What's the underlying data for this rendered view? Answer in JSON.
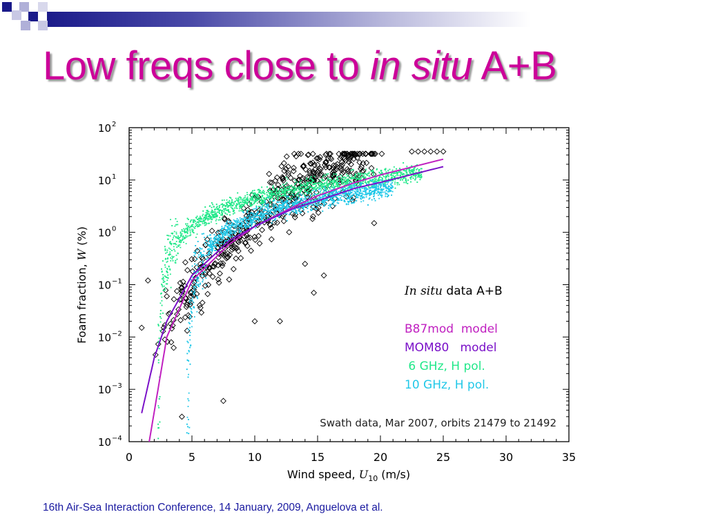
{
  "slide": {
    "title_pre": "Low freqs close to ",
    "title_italic": "in situ",
    "title_post": " A+B",
    "footer": "16th Air-Sea Interaction Conference, 14 January, 2009, Anguelova et al."
  },
  "colors": {
    "title": "#cc0099",
    "footer": "#1a1aa0",
    "b87": "#c020c0",
    "mom80": "#7a10c8",
    "ghz6": "#22e88a",
    "ghz10": "#22c8e8",
    "insitu": "#000000"
  },
  "chart_data": {
    "type": "scatter",
    "xlabel_pre": "Wind speed, ",
    "xlabel_var": "U",
    "xlabel_sub": "10",
    "xlabel_post": " (m/s)",
    "ylabel_pre": "Foam fraction, ",
    "ylabel_var": "W",
    "ylabel_post": " (%)",
    "xlim": [
      0,
      35
    ],
    "ylim": [
      0.0001,
      100
    ],
    "yscale": "log",
    "x_ticks": [
      "0",
      "5",
      "10",
      "15",
      "20",
      "25",
      "30",
      "35"
    ],
    "y_ticks": [
      {
        "base": "10",
        "exp": "2"
      },
      {
        "base": "10",
        "exp": "1"
      },
      {
        "base": "10",
        "exp": "0"
      },
      {
        "base": "10",
        "exp": "−1"
      },
      {
        "base": "10",
        "exp": "−2"
      },
      {
        "base": "10",
        "exp": "−3"
      },
      {
        "base": "10",
        "exp": "−4"
      }
    ],
    "legend": {
      "insitu_italic": "In situ",
      "insitu_rest": " data A+B",
      "b87": "B87mod  model",
      "mom80": "MOM80   model",
      "ghz6": " 6 GHz, H pol.",
      "ghz10": "10 GHz, H pol."
    },
    "annotation": "Swath data, Mar 2007, orbits 21479 to 21492",
    "series": [
      {
        "name": "B87mod  model",
        "kind": "line",
        "points": [
          [
            1.6,
            0.0001
          ],
          [
            3,
            0.01
          ],
          [
            5,
            0.12
          ],
          [
            8,
            0.6
          ],
          [
            10,
            1.3
          ],
          [
            13,
            3.0
          ],
          [
            15,
            5.0
          ],
          [
            18,
            9.0
          ],
          [
            20,
            12.5
          ],
          [
            25,
            25.0
          ]
        ]
      },
      {
        "name": "MOM80   model",
        "kind": "line",
        "points": [
          [
            1.0,
            0.00035
          ],
          [
            2,
            0.004
          ],
          [
            3,
            0.02
          ],
          [
            5,
            0.15
          ],
          [
            8,
            0.7
          ],
          [
            10,
            1.3
          ],
          [
            13,
            2.8
          ],
          [
            15,
            4.0
          ],
          [
            18,
            7.0
          ],
          [
            20,
            9.0
          ],
          [
            25,
            18.0
          ]
        ]
      },
      {
        "name": " 6 GHz, H pol.",
        "kind": "band",
        "xmin": 2.3,
        "xmax": 23.3,
        "k": 0.85,
        "x0": 2.4,
        "p": 1.15,
        "spread": 0.28
      },
      {
        "name": "10 GHz, H pol.",
        "kind": "band",
        "xmin": 4.6,
        "xmax": 21.0,
        "k": 0.55,
        "x0": 4.75,
        "p": 1.18,
        "spread": 0.32
      },
      {
        "name": "In situ data A+B",
        "kind": "scatter",
        "count": 520,
        "trend": "log10(W) = -2.3 + 4.4*(1 - exp(-(U-2)/9))",
        "spread_decades": 0.7,
        "points_sample": [
          [
            1,
            0.015
          ],
          [
            1.5,
            0.12
          ],
          [
            3,
            0.06
          ],
          [
            4.2,
            0.0003
          ],
          [
            7.5,
            0.0006
          ],
          [
            10,
            0.02
          ],
          [
            12,
            0.02
          ],
          [
            14,
            0.25
          ],
          [
            14.7,
            0.07
          ],
          [
            15.5,
            0.15
          ],
          [
            19.5,
            1.5
          ],
          [
            22.5,
            35
          ],
          [
            23,
            35
          ],
          [
            23.5,
            35
          ],
          [
            24,
            35
          ],
          [
            24.5,
            35
          ],
          [
            25,
            35
          ]
        ]
      }
    ]
  }
}
